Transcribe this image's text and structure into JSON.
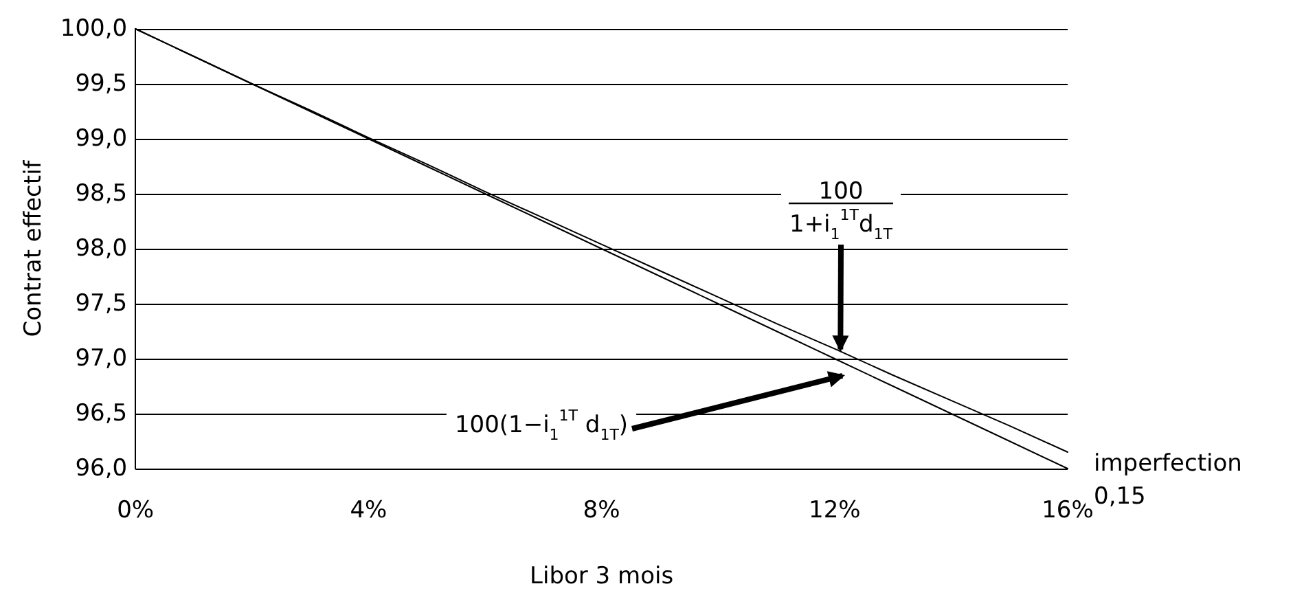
{
  "chart_data": {
    "type": "line",
    "xlabel": "Libor 3 mois",
    "ylabel": "Contrat effectif",
    "x": [
      0,
      1,
      2,
      3,
      4,
      5,
      6,
      7,
      8,
      9,
      10,
      11,
      12,
      13,
      14,
      15,
      16
    ],
    "series": [
      {
        "color": "#000000",
        "values": [
          100,
          99.75,
          99.5,
          99.25,
          99,
          98.75,
          98.5,
          98.25,
          98,
          97.75,
          97.5,
          97.25,
          97,
          96.75,
          96.5,
          96.25,
          96
        ]
      },
      {
        "color": "#000000",
        "values": [
          100,
          99.75,
          99.5,
          99.26,
          99.01,
          98.77,
          98.52,
          98.28,
          98.04,
          97.8,
          97.56,
          97.32,
          97.09,
          96.85,
          96.62,
          96.39,
          96.15
        ]
      }
    ],
    "xlim": [
      0,
      16
    ],
    "xticks": [
      {
        "value": 0,
        "label": "0%"
      },
      {
        "value": 4,
        "label": "4%"
      },
      {
        "value": 8,
        "label": "8%"
      },
      {
        "value": 12,
        "label": "12%"
      },
      {
        "value": 16,
        "label": "16%"
      }
    ],
    "ylim": [
      96,
      100
    ],
    "yticks": [
      {
        "value": 96,
        "label": "96,0"
      },
      {
        "value": 96.5,
        "label": "96,5"
      },
      {
        "value": 97,
        "label": "97,0"
      },
      {
        "value": 97.5,
        "label": "97,5"
      },
      {
        "value": 98,
        "label": "98,0"
      },
      {
        "value": 98.5,
        "label": "98,5"
      },
      {
        "value": 99,
        "label": "99,0"
      },
      {
        "value": 99.5,
        "label": "99,5"
      },
      {
        "value": 100,
        "label": "100,0"
      }
    ],
    "grid": "y",
    "marker": "none",
    "line_style": "solid",
    "annotations": [
      {
        "text": "100\n1+i$_{1}$$^{1T}$d$_{1T}$",
        "x": 12.1,
        "y": 97.06
      },
      "100(1−i$_{1}$$^{1T}$ d$_{1T}$)",
      "imperfection\n0,15"
    ]
  }
}
